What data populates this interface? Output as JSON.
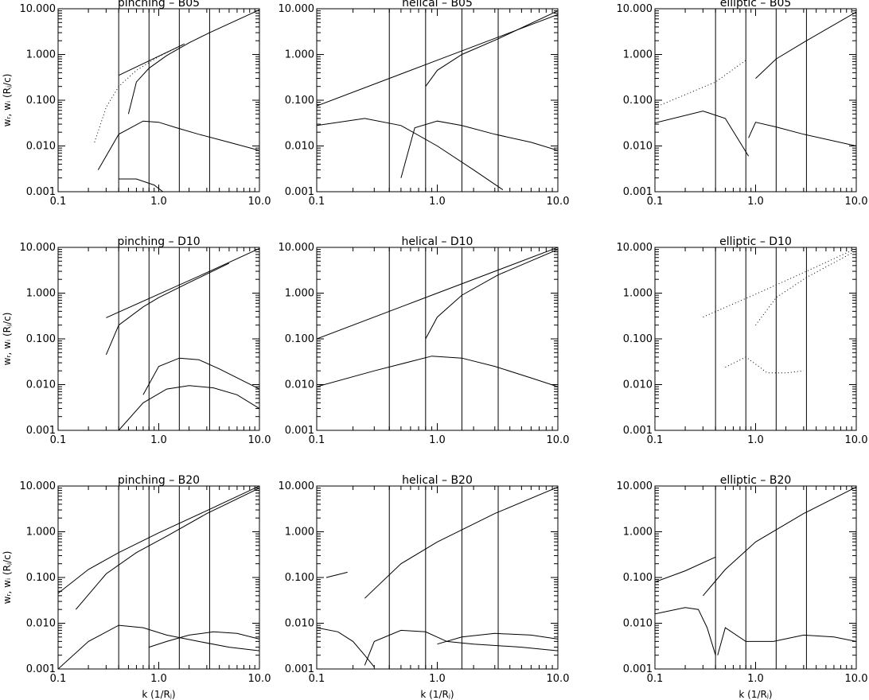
{
  "figure": {
    "line_color": "#000000",
    "background": "#ffffff",
    "ylabel": "wᵣ, wᵢ (Rⱼ/c)",
    "xlabel": "k (1/Rⱼ)"
  },
  "chart_data": [
    {
      "type": "line",
      "title": "pinching – B05",
      "scale": "log-log",
      "xlim": [
        0.1,
        10.0
      ],
      "ylim": [
        0.001,
        10.0
      ],
      "xticks": [
        "0.1",
        "1.0",
        "10.0"
      ],
      "yticks": [
        "0.001",
        "0.010",
        "0.100",
        "1.000",
        "10.000"
      ],
      "vlines": [
        0.4,
        0.8,
        1.6,
        3.2
      ],
      "ylabel": "wᵣ, wᵢ (Rⱼ/c)",
      "xlabel": "",
      "series": [
        {
          "style": "line",
          "x": [
            0.4,
            1.8
          ],
          "y": [
            0.35,
            1.7
          ]
        },
        {
          "style": "dots",
          "x": [
            0.23,
            0.3,
            0.4,
            0.6,
            1.0,
            1.8
          ],
          "y": [
            0.012,
            0.07,
            0.2,
            0.45,
            0.9,
            1.7
          ]
        },
        {
          "style": "line",
          "x": [
            0.5,
            0.6,
            0.8,
            1.2,
            2.0,
            3.2,
            10.0
          ],
          "y": [
            0.05,
            0.25,
            0.5,
            0.95,
            1.8,
            3.0,
            9.5
          ]
        },
        {
          "style": "line",
          "x": [
            0.25,
            0.4,
            0.7,
            1.0,
            1.5,
            2.5,
            5.0,
            10.0
          ],
          "y": [
            0.003,
            0.018,
            0.035,
            0.033,
            0.025,
            0.018,
            0.012,
            0.008
          ]
        },
        {
          "style": "line",
          "x": [
            0.4,
            0.6,
            0.9,
            1.1
          ],
          "y": [
            0.0019,
            0.0019,
            0.0014,
            0.001
          ]
        }
      ]
    },
    {
      "type": "line",
      "title": "helical – B05",
      "scale": "log-log",
      "xlim": [
        0.1,
        10.0
      ],
      "ylim": [
        0.001,
        10.0
      ],
      "xticks": [
        "0.1",
        "1.0",
        "10.0"
      ],
      "yticks": [
        "0.001",
        "0.010",
        "0.100",
        "1.000",
        "10.000"
      ],
      "vlines": [
        0.4,
        0.8,
        1.6,
        3.2
      ],
      "ylabel": "",
      "xlabel": "",
      "series": [
        {
          "style": "line",
          "x": [
            0.1,
            1.0,
            10.0
          ],
          "y": [
            0.075,
            0.75,
            7.5
          ]
        },
        {
          "style": "line",
          "x": [
            0.1,
            0.25,
            0.5,
            1.0,
            2.0,
            3.5
          ],
          "y": [
            0.028,
            0.04,
            0.028,
            0.01,
            0.003,
            0.0011
          ]
        },
        {
          "style": "line",
          "x": [
            0.5,
            0.65,
            1.0,
            1.6,
            3.0,
            6.0,
            10.0
          ],
          "y": [
            0.002,
            0.025,
            0.035,
            0.028,
            0.018,
            0.012,
            0.008
          ]
        },
        {
          "style": "line",
          "x": [
            0.8,
            1.0,
            1.6,
            3.2,
            10.0
          ],
          "y": [
            0.2,
            0.45,
            1.0,
            2.2,
            9.0
          ]
        }
      ]
    },
    {
      "type": "line",
      "title": "elliptic – B05",
      "scale": "log-log",
      "xlim": [
        0.1,
        10.0
      ],
      "ylim": [
        0.001,
        10.0
      ],
      "xticks": [
        "0.1",
        "1.0",
        "10.0"
      ],
      "yticks": [
        "0.001",
        "0.010",
        "0.100",
        "1.000",
        "10.000"
      ],
      "vlines": [
        0.4,
        0.8,
        1.6,
        3.2
      ],
      "ylabel": "",
      "xlabel": "",
      "series": [
        {
          "style": "dots",
          "x": [
            0.1,
            0.4,
            0.8
          ],
          "y": [
            0.07,
            0.25,
            0.75
          ]
        },
        {
          "style": "line",
          "x": [
            0.1,
            0.3,
            0.5,
            0.7,
            0.85
          ],
          "y": [
            0.032,
            0.058,
            0.04,
            0.012,
            0.006
          ]
        },
        {
          "style": "line",
          "x": [
            0.85,
            1.0,
            1.6,
            3.0,
            10.0
          ],
          "y": [
            0.015,
            0.033,
            0.026,
            0.018,
            0.01
          ]
        },
        {
          "style": "line",
          "x": [
            1.0,
            1.6,
            3.2,
            10.0
          ],
          "y": [
            0.3,
            0.8,
            2.0,
            8.5
          ]
        }
      ]
    },
    {
      "type": "line",
      "title": "pinching – D10",
      "scale": "log-log",
      "xlim": [
        0.1,
        10.0
      ],
      "ylim": [
        0.001,
        10.0
      ],
      "xticks": [
        "0.1",
        "1.0",
        "10.0"
      ],
      "yticks": [
        "0.001",
        "0.010",
        "0.100",
        "1.000",
        "10.000"
      ],
      "vlines": [
        0.4,
        0.8,
        1.6,
        3.2
      ],
      "ylabel": "wᵣ, wᵢ (Rⱼ/c)",
      "xlabel": "",
      "series": [
        {
          "style": "line",
          "x": [
            0.3,
            1.0,
            3.2,
            10.0
          ],
          "y": [
            0.29,
            0.95,
            3.0,
            9.5
          ]
        },
        {
          "style": "line",
          "x": [
            0.3,
            0.4,
            0.7,
            1.0,
            2.0,
            5.0
          ],
          "y": [
            0.045,
            0.2,
            0.5,
            0.8,
            1.7,
            4.5
          ]
        },
        {
          "style": "line",
          "x": [
            0.4,
            0.7,
            1.2,
            2.0,
            3.5,
            6.0,
            10.0
          ],
          "y": [
            0.001,
            0.004,
            0.008,
            0.0095,
            0.0085,
            0.006,
            0.003
          ]
        },
        {
          "style": "line",
          "x": [
            0.7,
            1.0,
            1.6,
            2.5,
            4.0,
            10.0
          ],
          "y": [
            0.006,
            0.025,
            0.038,
            0.035,
            0.022,
            0.008
          ]
        }
      ]
    },
    {
      "type": "line",
      "title": "helical – D10",
      "scale": "log-log",
      "xlim": [
        0.1,
        10.0
      ],
      "ylim": [
        0.001,
        10.0
      ],
      "xticks": [
        "0.1",
        "1.0",
        "10.0"
      ],
      "yticks": [
        "0.001",
        "0.010",
        "0.100",
        "1.000",
        "10.000"
      ],
      "vlines": [
        0.4,
        0.8,
        1.6,
        3.2
      ],
      "ylabel": "",
      "xlabel": "",
      "series": [
        {
          "style": "line",
          "x": [
            0.1,
            1.0,
            10.0
          ],
          "y": [
            0.1,
            1.0,
            10.0
          ]
        },
        {
          "style": "line",
          "x": [
            0.1,
            0.3,
            0.9,
            1.6,
            3.0,
            6.0,
            10.0
          ],
          "y": [
            0.009,
            0.02,
            0.042,
            0.038,
            0.025,
            0.014,
            0.009
          ]
        },
        {
          "style": "line",
          "x": [
            0.8,
            1.0,
            1.6,
            3.2,
            10.0
          ],
          "y": [
            0.1,
            0.3,
            0.9,
            2.5,
            9.0
          ]
        }
      ]
    },
    {
      "type": "line",
      "title": "elliptic – D10",
      "scale": "log-log",
      "xlim": [
        0.1,
        10.0
      ],
      "ylim": [
        0.001,
        10.0
      ],
      "xticks": [
        "0.1",
        "1.0",
        "10.0"
      ],
      "yticks": [
        "0.001",
        "0.010",
        "0.100",
        "1.000",
        "10.000"
      ],
      "vlines": [
        0.4,
        0.8,
        1.6,
        3.2
      ],
      "ylabel": "",
      "xlabel": "",
      "series": [
        {
          "style": "dots",
          "x": [
            0.3,
            1.0,
            3.2,
            10.0
          ],
          "y": [
            0.3,
            0.95,
            3.0,
            9.5
          ]
        },
        {
          "style": "dots",
          "x": [
            0.5,
            0.8,
            1.1,
            1.3,
            2.0,
            3.0
          ],
          "y": [
            0.024,
            0.04,
            0.024,
            0.018,
            0.018,
            0.02
          ]
        },
        {
          "style": "dots",
          "x": [
            1.0,
            1.6,
            3.2,
            10.0
          ],
          "y": [
            0.2,
            0.8,
            2.2,
            8.5
          ]
        }
      ]
    },
    {
      "type": "line",
      "title": "pinching – B20",
      "scale": "log-log",
      "xlim": [
        0.1,
        10.0
      ],
      "ylim": [
        0.001,
        10.0
      ],
      "xticks": [
        "0.1",
        "1.0",
        "10.0"
      ],
      "yticks": [
        "0.001",
        "0.010",
        "0.100",
        "1.000",
        "10.000"
      ],
      "vlines": [
        0.4,
        0.8,
        1.6,
        3.2
      ],
      "ylabel": "wᵣ, wᵢ (Rⱼ/c)",
      "xlabel": "k (1/Rⱼ)",
      "series": [
        {
          "style": "line",
          "x": [
            0.1,
            0.2,
            0.4,
            1.0,
            3.0,
            10.0
          ],
          "y": [
            0.045,
            0.15,
            0.35,
            0.95,
            2.9,
            10.0
          ]
        },
        {
          "style": "line",
          "x": [
            0.1,
            0.2,
            0.4,
            0.7,
            1.2,
            2.5,
            5.0,
            10.0
          ],
          "y": [
            0.001,
            0.004,
            0.009,
            0.008,
            0.0055,
            0.004,
            0.003,
            0.0025
          ]
        },
        {
          "style": "line",
          "x": [
            0.8,
            1.2,
            2.0,
            3.5,
            6.0,
            10.0
          ],
          "y": [
            0.003,
            0.004,
            0.0055,
            0.0065,
            0.006,
            0.0045
          ]
        },
        {
          "style": "line",
          "x": [
            0.15,
            0.3,
            0.6,
            1.2,
            3.0,
            10.0
          ],
          "y": [
            0.02,
            0.12,
            0.35,
            0.8,
            2.5,
            9.0
          ]
        }
      ]
    },
    {
      "type": "line",
      "title": "helical – B20",
      "scale": "log-log",
      "xlim": [
        0.1,
        10.0
      ],
      "ylim": [
        0.001,
        10.0
      ],
      "xticks": [
        "0.1",
        "1.0",
        "10.0"
      ],
      "yticks": [
        "0.001",
        "0.010",
        "0.100",
        "1.000",
        "10.000"
      ],
      "vlines": [
        0.4,
        0.8,
        1.6,
        3.2
      ],
      "ylabel": "",
      "xlabel": "k (1/Rⱼ)",
      "series": [
        {
          "style": "line",
          "x": [
            0.12,
            0.18
          ],
          "y": [
            0.1,
            0.13
          ]
        },
        {
          "style": "line",
          "x": [
            0.1,
            0.15,
            0.2,
            0.25,
            0.3
          ],
          "y": [
            0.008,
            0.0065,
            0.004,
            0.002,
            0.0011
          ]
        },
        {
          "style": "line",
          "x": [
            0.25,
            0.3,
            0.5,
            0.8,
            1.2,
            2.0,
            5.0,
            10.0
          ],
          "y": [
            0.0012,
            0.004,
            0.007,
            0.0065,
            0.004,
            0.0035,
            0.003,
            0.0025
          ]
        },
        {
          "style": "line",
          "x": [
            1.0,
            1.6,
            3.0,
            6.0,
            10.0
          ],
          "y": [
            0.0035,
            0.005,
            0.006,
            0.0055,
            0.0045
          ]
        },
        {
          "style": "line",
          "x": [
            0.25,
            0.5,
            1.0,
            3.0,
            10.0
          ],
          "y": [
            0.035,
            0.2,
            0.6,
            2.5,
            9.5
          ]
        }
      ]
    },
    {
      "type": "line",
      "title": "elliptic – B20",
      "scale": "log-log",
      "xlim": [
        0.1,
        10.0
      ],
      "ylim": [
        0.001,
        10.0
      ],
      "xticks": [
        "0.1",
        "1.0",
        "10.0"
      ],
      "yticks": [
        "0.001",
        "0.010",
        "0.100",
        "1.000",
        "10.000"
      ],
      "vlines": [
        0.4,
        0.8,
        1.6,
        3.2
      ],
      "ylabel": "",
      "xlabel": "k (1/Rⱼ)",
      "series": [
        {
          "style": "line",
          "x": [
            0.1,
            0.2,
            0.4
          ],
          "y": [
            0.08,
            0.14,
            0.28
          ]
        },
        {
          "style": "line",
          "x": [
            0.1,
            0.2,
            0.27,
            0.33,
            0.4
          ],
          "y": [
            0.016,
            0.022,
            0.02,
            0.008,
            0.002
          ]
        },
        {
          "style": "line",
          "x": [
            0.42,
            0.5,
            0.8,
            1.5,
            3.0,
            6.0,
            10.0
          ],
          "y": [
            0.002,
            0.008,
            0.004,
            0.004,
            0.0055,
            0.005,
            0.004
          ]
        },
        {
          "style": "line",
          "x": [
            0.3,
            0.5,
            1.0,
            3.0,
            10.0
          ],
          "y": [
            0.04,
            0.15,
            0.6,
            2.5,
            9.5
          ]
        }
      ]
    }
  ]
}
